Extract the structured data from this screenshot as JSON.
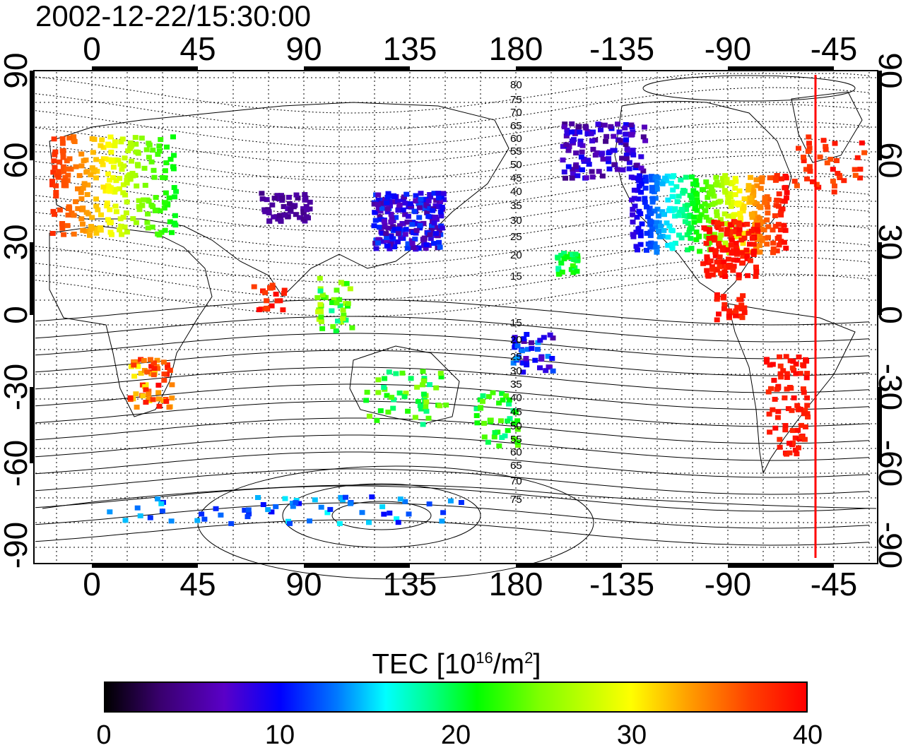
{
  "title": "2002-12-22/15:30:00",
  "axes": {
    "x_ticks_top": [
      "0",
      "45",
      "90",
      "135",
      "180",
      "-135",
      "-90",
      "-45"
    ],
    "x_ticks_bottom": [
      "0",
      "45",
      "90",
      "135",
      "180",
      "-135",
      "-90",
      "-45"
    ],
    "y_ticks_left": [
      "90",
      "60",
      "30",
      "0",
      "-30",
      "-60",
      "-90"
    ],
    "y_ticks_right": [
      "90",
      "60",
      "30",
      "0",
      "-30",
      "-60",
      "-90"
    ]
  },
  "contour_labels": [
    "80",
    "75",
    "70",
    "65",
    "60",
    "55",
    "50",
    "45",
    "40",
    "35",
    "30",
    "25",
    "20",
    "15",
    "15",
    "20",
    "25",
    "30",
    "35",
    "40",
    "45",
    "50",
    "55",
    "60",
    "65",
    "70",
    "75"
  ],
  "colorbar": {
    "label_main": "TEC  [10",
    "label_exp1": "16",
    "label_mid": "/m",
    "label_exp2": "2",
    "label_end": "]",
    "ticks": [
      "0",
      "10",
      "20",
      "30",
      "40"
    ],
    "range": [
      0,
      40
    ]
  },
  "colors": {
    "terminator_line": "#ff0000"
  }
}
